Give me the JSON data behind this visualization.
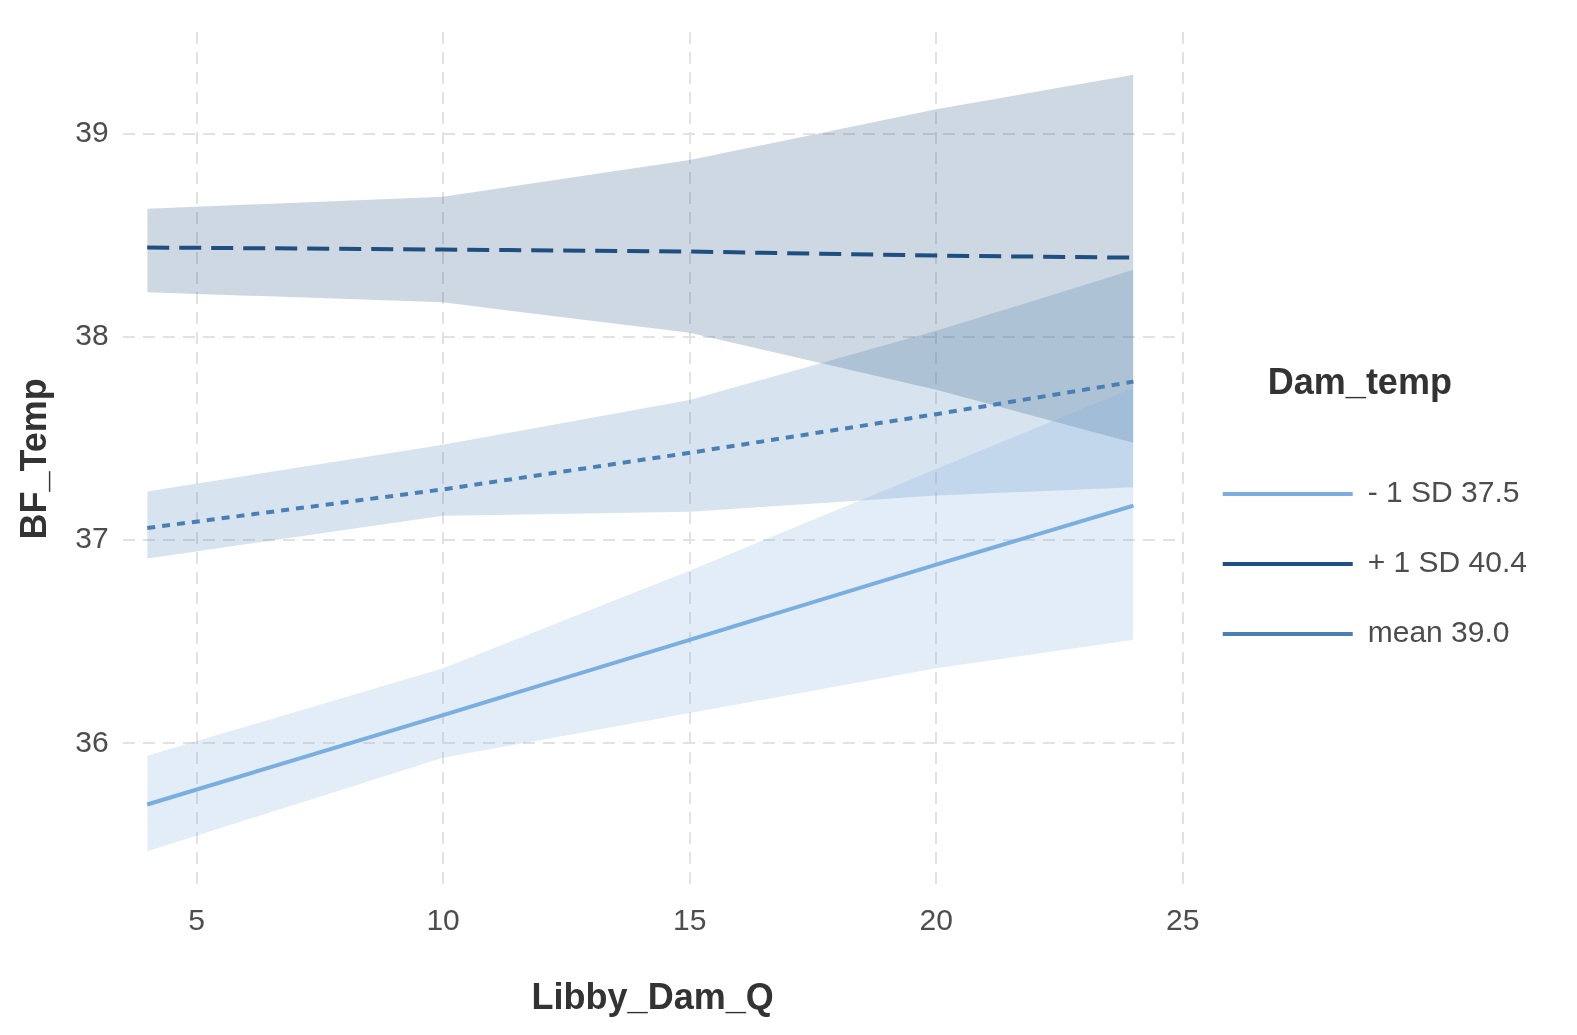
{
  "chart_data": {
    "type": "line",
    "xlabel": "Libby_Dam_Q",
    "ylabel": "BF_Temp",
    "legend_title": "Dam_temp",
    "legend": "right",
    "grid": true,
    "x": [
      4,
      10,
      15,
      20,
      24
    ],
    "xlim": [
      3.5,
      25
    ],
    "xticks": [
      5,
      10,
      15,
      20,
      25
    ],
    "ylim": [
      35.3,
      39.5
    ],
    "yticks": [
      36,
      37,
      38,
      39
    ],
    "series": [
      {
        "name": "- 1 SD 37.5",
        "color": "#7aaede",
        "line_style": "solid",
        "values": [
          35.7,
          36.14,
          36.51,
          36.88,
          37.17
        ],
        "lower": [
          35.47,
          35.93,
          36.15,
          36.37,
          36.51
        ],
        "upper": [
          35.94,
          36.37,
          36.85,
          37.35,
          37.75
        ]
      },
      {
        "name": "+ 1 SD 40.4",
        "color": "#1f4e80",
        "line_style": "dashed",
        "values": [
          38.44,
          38.43,
          38.42,
          38.4,
          38.39
        ],
        "lower": [
          38.22,
          38.17,
          38.02,
          37.74,
          37.48
        ],
        "upper": [
          38.63,
          38.69,
          38.87,
          39.12,
          39.29
        ]
      },
      {
        "name": "mean 39.0",
        "color": "#4a7fb5",
        "line_style": "dotted",
        "values": [
          37.06,
          37.25,
          37.43,
          37.62,
          37.78
        ],
        "lower": [
          36.91,
          37.12,
          37.14,
          37.22,
          37.26
        ],
        "upper": [
          37.24,
          37.47,
          37.69,
          38.03,
          38.33
        ]
      }
    ]
  }
}
